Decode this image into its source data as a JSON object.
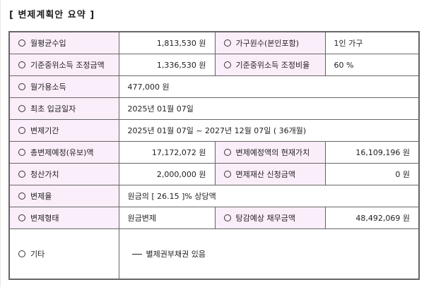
{
  "title": "[ 변제계획안 요약 ]",
  "rows": [
    {
      "label": "월평균수입",
      "value": "1,813,530 원",
      "label2": "가구원수(본인포함)",
      "value2": "1인 가구"
    },
    {
      "label": "기준중위소득 조정금액",
      "value": "1,336,530 원",
      "label2": "기준중위소득 조정비율",
      "value2": "60 %"
    },
    {
      "label": "월가용소득",
      "value": "477,000 원"
    },
    {
      "label": "최초 입금일자",
      "value": "2025년 01월 07일"
    },
    {
      "label": "변제기간",
      "value": "2025년 01월 07일 ~ 2027년 12월 07일 ( 36개월)"
    },
    {
      "label": "총변제예정(유보)액",
      "value": "17,172,072 원",
      "label2": "변제예정액의 현재가치",
      "value2": "16,109,196 원"
    },
    {
      "label": "청산가치",
      "value": "2,000,000 원",
      "label2": "면제재산 신청금액",
      "value2": "0 원"
    },
    {
      "label": "변제율",
      "value": "원금의 [ 26.15 ]% 상당액"
    },
    {
      "label": "변제형태",
      "value": "원금변제",
      "label2": "탕감예상 채무금액",
      "value2": "48,492,069 원"
    },
    {
      "label": "기타",
      "value": "별제권부채권 있음"
    }
  ]
}
